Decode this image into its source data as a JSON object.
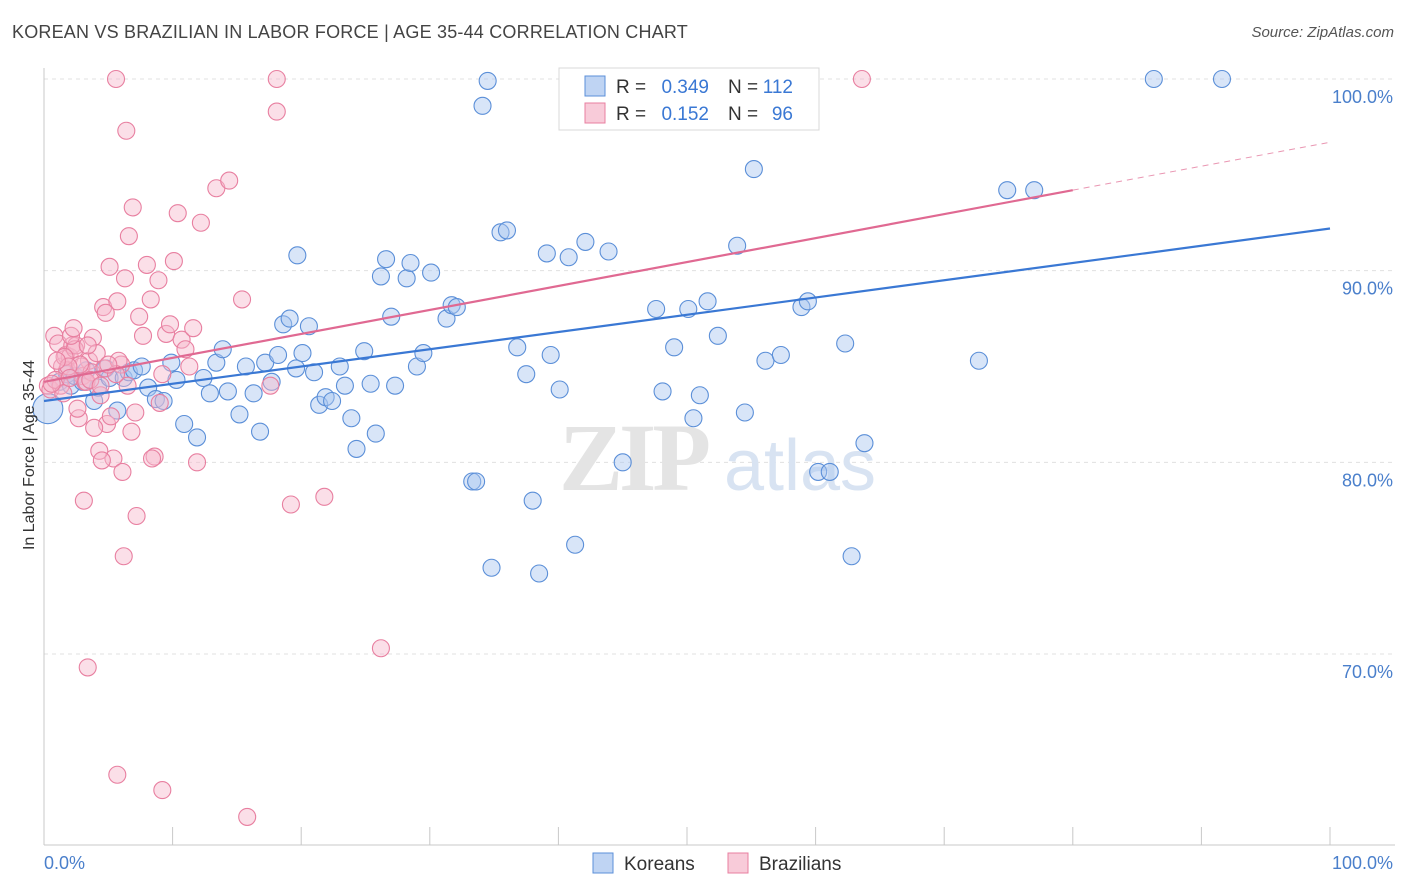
{
  "chart_data": {
    "type": "scatter",
    "title": "KOREAN VS BRAZILIAN IN LABOR FORCE | AGE 35-44 CORRELATION CHART",
    "source": "Source: ZipAtlas.com",
    "ylabel": "In Labor Force | Age 35-44",
    "xlabel": "",
    "xlim": [
      0,
      100
    ],
    "ylim": [
      59,
      100.5
    ],
    "x_tick_labels": [
      "0.0%",
      "100.0%"
    ],
    "y_ticks": [
      {
        "value": 70,
        "label": "70.0%"
      },
      {
        "value": 80,
        "label": "80.0%"
      },
      {
        "value": 90,
        "label": "90.0%"
      },
      {
        "value": 100,
        "label": "100.0%"
      }
    ],
    "watermark": "ZIPatlas",
    "grid": true,
    "legend_position": "top-center",
    "stats": [
      {
        "r_label": "R =",
        "r_value": "0.349",
        "n_label": "N =",
        "n_value": "112"
      },
      {
        "r_label": "R =",
        "r_value": "0.152",
        "n_label": "N =",
        "n_value": "96"
      }
    ],
    "series": [
      {
        "name": "Koreans",
        "color": "#5b8fd8",
        "fill": "#a9c6ef",
        "line_color": "#3a78d4",
        "trend": {
          "x0": 0,
          "y0": 83.2,
          "x1": 100,
          "y1": 92.2
        },
        "points": [
          [
            0.3,
            82.8
          ],
          [
            1.2,
            84.2
          ],
          [
            1.8,
            84.6
          ],
          [
            2.1,
            84.0
          ],
          [
            2.4,
            84.5
          ],
          [
            3.0,
            84.2
          ],
          [
            3.3,
            84.8
          ],
          [
            3.9,
            83.2
          ],
          [
            4.2,
            83.9
          ],
          [
            4.8,
            84.9
          ],
          [
            5.1,
            84.4
          ],
          [
            5.7,
            82.7
          ],
          [
            6.2,
            84.4
          ],
          [
            6.6,
            84.7
          ],
          [
            7.0,
            84.8
          ],
          [
            7.6,
            85.0
          ],
          [
            8.1,
            83.9
          ],
          [
            8.7,
            83.3
          ],
          [
            9.3,
            83.2
          ],
          [
            9.9,
            85.2
          ],
          [
            10.3,
            84.3
          ],
          [
            10.9,
            82.0
          ],
          [
            11.9,
            81.3
          ],
          [
            12.4,
            84.4
          ],
          [
            12.9,
            83.6
          ],
          [
            13.4,
            85.2
          ],
          [
            13.9,
            85.9
          ],
          [
            14.3,
            83.7
          ],
          [
            15.2,
            82.5
          ],
          [
            15.7,
            85.0
          ],
          [
            16.3,
            83.6
          ],
          [
            16.8,
            81.6
          ],
          [
            17.2,
            85.2
          ],
          [
            17.7,
            84.2
          ],
          [
            18.2,
            85.6
          ],
          [
            18.6,
            87.2
          ],
          [
            19.1,
            87.5
          ],
          [
            19.6,
            84.9
          ],
          [
            19.7,
            90.8
          ],
          [
            20.1,
            85.7
          ],
          [
            20.6,
            87.1
          ],
          [
            21.0,
            84.7
          ],
          [
            21.4,
            83.0
          ],
          [
            21.9,
            83.4
          ],
          [
            22.4,
            83.2
          ],
          [
            23.0,
            85.0
          ],
          [
            23.4,
            84.0
          ],
          [
            23.9,
            82.3
          ],
          [
            24.3,
            80.7
          ],
          [
            24.9,
            85.8
          ],
          [
            25.4,
            84.1
          ],
          [
            25.8,
            81.5
          ],
          [
            26.2,
            89.7
          ],
          [
            26.6,
            90.6
          ],
          [
            27.0,
            87.6
          ],
          [
            27.3,
            84.0
          ],
          [
            28.2,
            89.6
          ],
          [
            28.5,
            90.4
          ],
          [
            29.0,
            85.0
          ],
          [
            29.5,
            85.7
          ],
          [
            30.1,
            89.9
          ],
          [
            31.3,
            87.5
          ],
          [
            31.7,
            88.2
          ],
          [
            32.1,
            88.1
          ],
          [
            33.3,
            79.0
          ],
          [
            33.6,
            79.0
          ],
          [
            34.1,
            98.6
          ],
          [
            34.5,
            99.9
          ],
          [
            34.8,
            74.5
          ],
          [
            35.5,
            92.0
          ],
          [
            36.0,
            92.1
          ],
          [
            36.8,
            86.0
          ],
          [
            37.5,
            84.6
          ],
          [
            38.0,
            78.0
          ],
          [
            38.5,
            74.2
          ],
          [
            39.1,
            90.9
          ],
          [
            39.4,
            85.6
          ],
          [
            40.1,
            83.8
          ],
          [
            40.8,
            90.7
          ],
          [
            41.3,
            75.7
          ],
          [
            42.1,
            91.5
          ],
          [
            43.9,
            91.0
          ],
          [
            45.0,
            80.0
          ],
          [
            47.6,
            88.0
          ],
          [
            48.1,
            83.7
          ],
          [
            49.0,
            86.0
          ],
          [
            50.1,
            88.0
          ],
          [
            50.5,
            82.3
          ],
          [
            51.0,
            83.5
          ],
          [
            51.6,
            88.4
          ],
          [
            52.4,
            86.6
          ],
          [
            53.9,
            91.3
          ],
          [
            54.5,
            82.6
          ],
          [
            55.2,
            95.3
          ],
          [
            56.1,
            85.3
          ],
          [
            57.3,
            85.6
          ],
          [
            58.9,
            88.1
          ],
          [
            59.4,
            88.4
          ],
          [
            60.2,
            79.5
          ],
          [
            61.1,
            79.5
          ],
          [
            62.3,
            86.2
          ],
          [
            62.8,
            75.1
          ],
          [
            63.8,
            81.0
          ],
          [
            72.7,
            85.3
          ],
          [
            74.9,
            94.2
          ],
          [
            77.0,
            94.2
          ],
          [
            86.3,
            100.0
          ],
          [
            91.6,
            100.0
          ]
        ]
      },
      {
        "name": "Brazilians",
        "color": "#e87fa0",
        "fill": "#f6b9cc",
        "line_color": "#e06992",
        "trend": {
          "x0": 0,
          "y0": 84.2,
          "x1": 80,
          "y1": 94.2
        },
        "trend_ext": {
          "x0": 80,
          "y0": 94.2,
          "x1": 100,
          "y1": 96.7
        },
        "points": [
          [
            0.3,
            84.0
          ],
          [
            0.5,
            83.8
          ],
          [
            0.8,
            86.6
          ],
          [
            1.1,
            86.2
          ],
          [
            1.4,
            85.0
          ],
          [
            1.7,
            85.6
          ],
          [
            2.0,
            85.5
          ],
          [
            2.2,
            86.1
          ],
          [
            2.5,
            86.1
          ],
          [
            2.7,
            82.3
          ],
          [
            3.0,
            84.5
          ],
          [
            3.2,
            84.2
          ],
          [
            3.5,
            85.3
          ],
          [
            3.8,
            86.5
          ],
          [
            4.1,
            85.7
          ],
          [
            4.4,
            83.5
          ],
          [
            4.6,
            88.1
          ],
          [
            4.9,
            82.0
          ],
          [
            5.1,
            90.2
          ],
          [
            5.4,
            80.2
          ],
          [
            5.7,
            88.4
          ],
          [
            6.0,
            85.1
          ],
          [
            6.3,
            89.6
          ],
          [
            6.6,
            91.8
          ],
          [
            6.9,
            93.3
          ],
          [
            7.1,
            82.6
          ],
          [
            7.4,
            87.6
          ],
          [
            7.7,
            86.6
          ],
          [
            8.0,
            90.3
          ],
          [
            8.3,
            88.5
          ],
          [
            8.6,
            80.3
          ],
          [
            8.9,
            89.5
          ],
          [
            9.2,
            84.6
          ],
          [
            9.5,
            86.7
          ],
          [
            9.8,
            87.2
          ],
          [
            10.1,
            90.5
          ],
          [
            10.4,
            93.0
          ],
          [
            10.7,
            86.4
          ],
          [
            11.0,
            85.9
          ],
          [
            11.3,
            85.0
          ],
          [
            11.6,
            87.0
          ],
          [
            11.9,
            80.0
          ],
          [
            12.2,
            92.5
          ],
          [
            13.4,
            94.3
          ],
          [
            14.4,
            94.7
          ],
          [
            15.4,
            88.5
          ],
          [
            17.6,
            84.0
          ],
          [
            18.1,
            98.3
          ],
          [
            18.1,
            100.0
          ],
          [
            19.2,
            77.8
          ],
          [
            21.8,
            78.2
          ],
          [
            26.2,
            70.3
          ],
          [
            5.6,
            100.0
          ],
          [
            6.4,
            97.3
          ],
          [
            1.3,
            84.0
          ],
          [
            1.8,
            84.8
          ],
          [
            2.4,
            85.9
          ],
          [
            3.4,
            86.1
          ],
          [
            0.9,
            84.3
          ],
          [
            1.6,
            85.5
          ],
          [
            2.9,
            85.0
          ],
          [
            3.7,
            84.7
          ],
          [
            4.7,
            84.9
          ],
          [
            5.8,
            85.3
          ],
          [
            6.1,
            79.5
          ],
          [
            6.5,
            84.0
          ],
          [
            3.1,
            78.0
          ],
          [
            4.3,
            80.6
          ],
          [
            7.2,
            77.2
          ],
          [
            8.4,
            80.2
          ],
          [
            9.0,
            83.1
          ],
          [
            3.3,
            84.2
          ],
          [
            2.6,
            82.8
          ],
          [
            4.8,
            87.8
          ],
          [
            6.8,
            81.6
          ],
          [
            5.2,
            82.4
          ],
          [
            2.1,
            86.6
          ],
          [
            2.8,
            85.1
          ],
          [
            3.6,
            84.3
          ],
          [
            1.5,
            83.6
          ],
          [
            2.3,
            87.0
          ],
          [
            1.9,
            85.0
          ],
          [
            4.5,
            80.1
          ],
          [
            5.6,
            84.6
          ],
          [
            3.9,
            81.8
          ],
          [
            6.2,
            75.1
          ],
          [
            3.4,
            69.3
          ],
          [
            5.7,
            63.7
          ],
          [
            9.2,
            62.9
          ],
          [
            15.8,
            61.5
          ],
          [
            63.6,
            100.0
          ],
          [
            0.6,
            84.1
          ],
          [
            1.0,
            85.3
          ],
          [
            2.0,
            84.4
          ],
          [
            4.4,
            84.0
          ],
          [
            5.0,
            85.1
          ]
        ]
      }
    ]
  }
}
